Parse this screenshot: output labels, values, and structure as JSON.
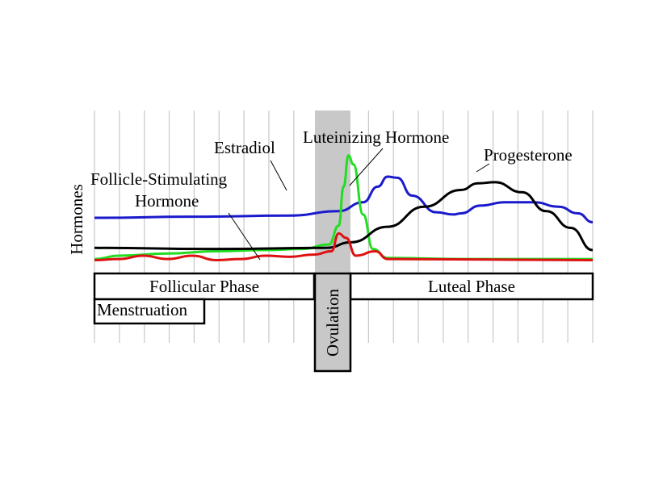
{
  "chart_data": {
    "type": "line",
    "ylabel": "Hormones",
    "labels": {
      "estradiol": "Estradiol",
      "lh": "Luteinizing Hormone",
      "progesterone": "Progesterone",
      "fsh_line1": "Follicle-Stimulating",
      "fsh_line2": "Hormone"
    },
    "phases": {
      "follicular": "Follicular Phase",
      "luteal": "Luteal Phase",
      "menstruation": "Menstruation",
      "ovulation": "Ovulation"
    },
    "colors": {
      "estradiol": "#1a1acc",
      "lh": "#22dd22",
      "progesterone": "#000000",
      "fsh": "#dd1111",
      "ovulation_band": "#c8c8c8",
      "grid": "#c8c8c8"
    },
    "series": [
      {
        "name": "Estradiol",
        "color": "#1a1acc",
        "points": [
          [
            0,
            0.42
          ],
          [
            4,
            0.43
          ],
          [
            8,
            0.44
          ],
          [
            10,
            0.48
          ],
          [
            11,
            0.56
          ],
          [
            11.6,
            0.7
          ],
          [
            12,
            0.79
          ],
          [
            12.4,
            0.78
          ],
          [
            13,
            0.62
          ],
          [
            14,
            0.47
          ],
          [
            14.7,
            0.45
          ],
          [
            15,
            0.46
          ],
          [
            15.8,
            0.53
          ],
          [
            16.8,
            0.56
          ],
          [
            18,
            0.56
          ],
          [
            19,
            0.52
          ],
          [
            19.8,
            0.46
          ],
          [
            20.4,
            0.38
          ]
        ]
      },
      {
        "name": "Luteinizing Hormone",
        "color": "#22dd22",
        "points": [
          [
            0,
            0.05
          ],
          [
            1,
            0.08
          ],
          [
            3,
            0.1
          ],
          [
            5,
            0.12
          ],
          [
            7,
            0.13
          ],
          [
            8.5,
            0.14
          ],
          [
            9.6,
            0.18
          ],
          [
            10,
            0.35
          ],
          [
            10.2,
            0.7
          ],
          [
            10.4,
            0.98
          ],
          [
            10.6,
            0.9
          ],
          [
            11,
            0.45
          ],
          [
            11.4,
            0.14
          ],
          [
            12,
            0.06
          ],
          [
            15,
            0.05
          ],
          [
            20.4,
            0.05
          ]
        ]
      },
      {
        "name": "Progesterone",
        "color": "#000000",
        "points": [
          [
            0,
            0.15
          ],
          [
            5,
            0.14
          ],
          [
            9.5,
            0.15
          ],
          [
            10.5,
            0.2
          ],
          [
            12,
            0.34
          ],
          [
            13.5,
            0.52
          ],
          [
            15,
            0.67
          ],
          [
            15.7,
            0.73
          ],
          [
            16.4,
            0.74
          ],
          [
            17.5,
            0.65
          ],
          [
            18.5,
            0.48
          ],
          [
            19.5,
            0.33
          ],
          [
            20.4,
            0.13
          ]
        ]
      },
      {
        "name": "Follicle-Stimulating Hormone",
        "color": "#dd1111",
        "points": [
          [
            0,
            0.04
          ],
          [
            1,
            0.05
          ],
          [
            2,
            0.08
          ],
          [
            3,
            0.05
          ],
          [
            4,
            0.08
          ],
          [
            5,
            0.04
          ],
          [
            6,
            0.05
          ],
          [
            7,
            0.08
          ],
          [
            8,
            0.07
          ],
          [
            9,
            0.09
          ],
          [
            9.7,
            0.12
          ],
          [
            10,
            0.28
          ],
          [
            10.3,
            0.24
          ],
          [
            10.7,
            0.08
          ],
          [
            11.5,
            0.12
          ],
          [
            12,
            0.05
          ],
          [
            20.4,
            0.04
          ]
        ]
      }
    ]
  }
}
